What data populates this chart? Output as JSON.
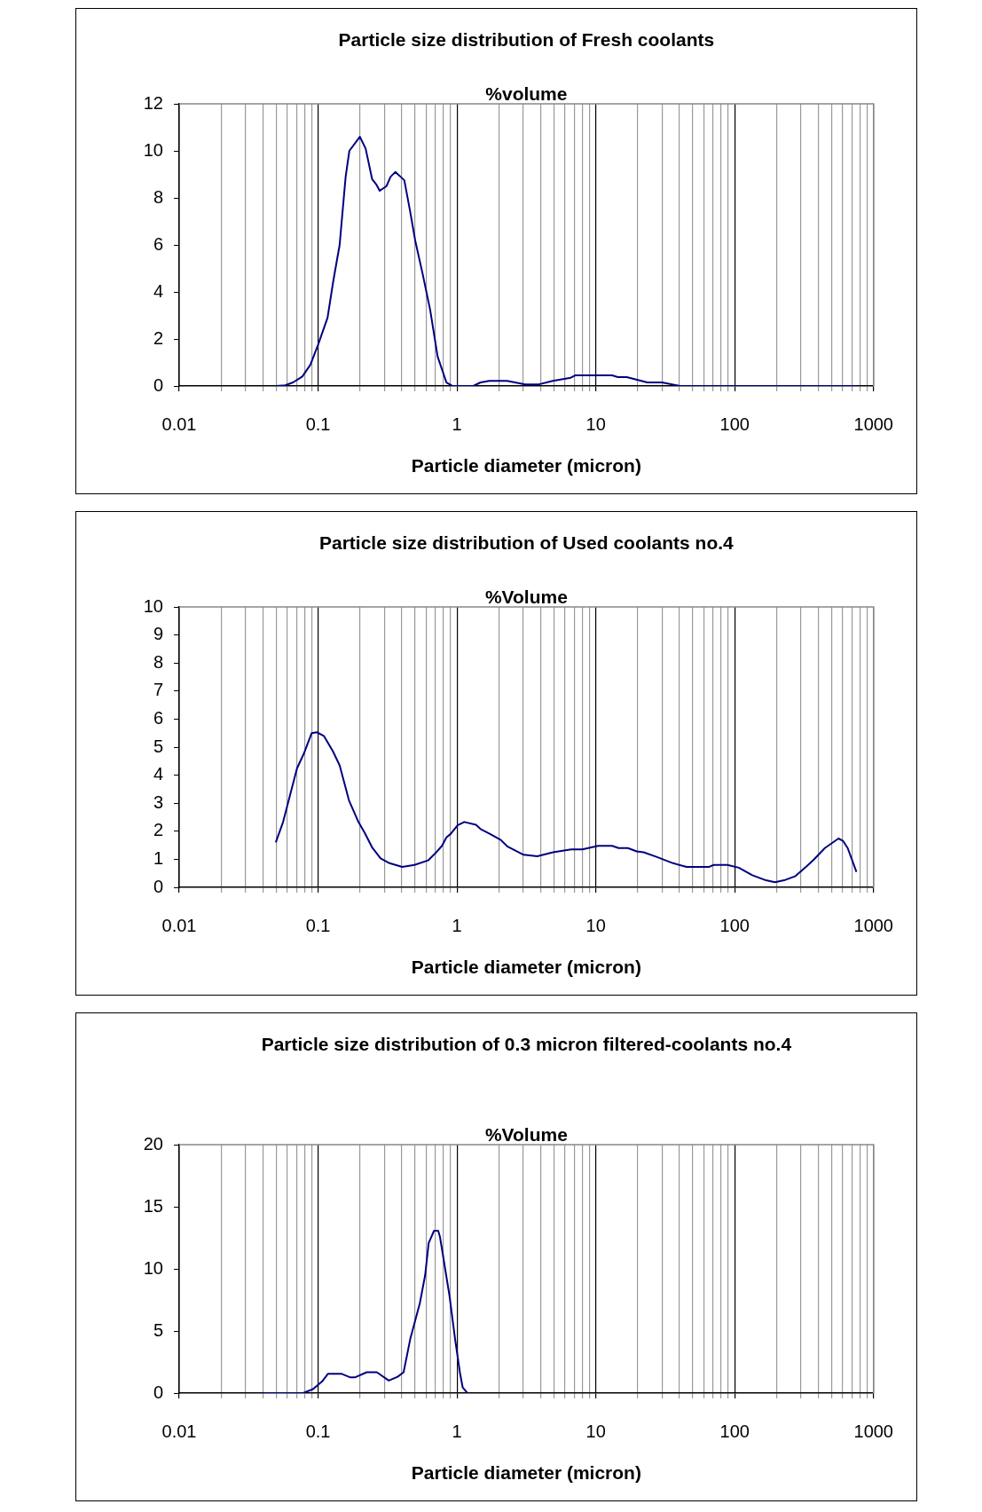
{
  "chart_data": [
    {
      "type": "line",
      "title": "Particle size distribution of Fresh coolants",
      "ylabel": "%volume",
      "xlabel": "Particle diameter (micron)",
      "log": "x",
      "grid": "x",
      "marker": "none",
      "line_style": "solid",
      "xlim": [
        0.01,
        1000
      ],
      "ylim": [
        0,
        12
      ],
      "yticks": [
        0,
        2,
        4,
        6,
        8,
        10,
        12
      ],
      "xticks": [
        0.01,
        {
          "value": 0.02,
          "label": null
        },
        {
          "value": 0.03,
          "label": null
        },
        {
          "value": 0.04,
          "label": null
        },
        {
          "value": 0.05,
          "label": null
        },
        {
          "value": 0.06,
          "label": null
        },
        {
          "value": 0.07,
          "label": null
        },
        {
          "value": 0.08,
          "label": null
        },
        {
          "value": 0.09,
          "label": null
        },
        0.1,
        {
          "value": 0.2,
          "label": null
        },
        {
          "value": 0.3,
          "label": null
        },
        {
          "value": 0.4,
          "label": null
        },
        {
          "value": 0.5,
          "label": null
        },
        {
          "value": 0.6,
          "label": null
        },
        {
          "value": 0.7,
          "label": null
        },
        {
          "value": 0.8,
          "label": null
        },
        {
          "value": 0.9,
          "label": null
        },
        1,
        {
          "value": 2,
          "label": null
        },
        {
          "value": 3,
          "label": null
        },
        {
          "value": 4,
          "label": null
        },
        {
          "value": 5,
          "label": null
        },
        {
          "value": 6,
          "label": null
        },
        {
          "value": 7,
          "label": null
        },
        {
          "value": 8,
          "label": null
        },
        {
          "value": 9,
          "label": null
        },
        10,
        {
          "value": 20,
          "label": null
        },
        {
          "value": 30,
          "label": null
        },
        {
          "value": 40,
          "label": null
        },
        {
          "value": 50,
          "label": null
        },
        {
          "value": 60,
          "label": null
        },
        {
          "value": 70,
          "label": null
        },
        {
          "value": 80,
          "label": null
        },
        {
          "value": 90,
          "label": null
        },
        100,
        {
          "value": 200,
          "label": null
        },
        {
          "value": 300,
          "label": null
        },
        {
          "value": 400,
          "label": null
        },
        {
          "value": 500,
          "label": null
        },
        {
          "value": 600,
          "label": null
        },
        {
          "value": 700,
          "label": null
        },
        {
          "value": 800,
          "label": null
        },
        {
          "value": 900,
          "label": null
        },
        1000
      ],
      "series": [
        {
          "color": "#000080",
          "x": [
            0.05,
            0.058,
            0.066,
            0.077,
            0.088,
            0.1,
            0.117,
            0.129,
            0.143,
            0.158,
            0.168,
            0.2,
            0.22,
            0.245,
            0.264,
            0.278,
            0.311,
            0.333,
            0.36,
            0.418,
            0.461,
            0.5,
            0.567,
            0.641,
            0.726,
            0.84,
            0.93,
            1.31,
            1.48,
            1.71,
            2.3,
            3.1,
            3.9,
            4.9,
            6.6,
            7.1,
            13.1,
            14.4,
            16.7,
            23.5,
            30,
            40.4,
            745
          ],
          "values": [
            0,
            0.03,
            0.15,
            0.4,
            0.9,
            1.75,
            2.9,
            4.5,
            6,
            8.9,
            10,
            10.6,
            10.1,
            8.8,
            8.55,
            8.3,
            8.5,
            8.9,
            9.1,
            8.75,
            7.4,
            6.2,
            4.75,
            3.25,
            1.25,
            0.15,
            0,
            0,
            0.15,
            0.22,
            0.22,
            0.07,
            0.07,
            0.22,
            0.35,
            0.45,
            0.45,
            0.38,
            0.38,
            0.15,
            0.15,
            0,
            0
          ]
        }
      ]
    },
    {
      "type": "line",
      "title": "Particle size distribution of Used coolants no.4",
      "ylabel": "%Volume",
      "xlabel": "Particle diameter (micron)",
      "log": "x",
      "grid": "x",
      "marker": "none",
      "line_style": "solid",
      "xlim": [
        0.01,
        1000
      ],
      "ylim": [
        0,
        10
      ],
      "yticks": [
        0,
        1,
        2,
        3,
        4,
        5,
        6,
        7,
        8,
        9,
        10
      ],
      "xticks": [
        0.01,
        {
          "value": 0.02,
          "label": null
        },
        {
          "value": 0.03,
          "label": null
        },
        {
          "value": 0.04,
          "label": null
        },
        {
          "value": 0.05,
          "label": null
        },
        {
          "value": 0.06,
          "label": null
        },
        {
          "value": 0.07,
          "label": null
        },
        {
          "value": 0.08,
          "label": null
        },
        {
          "value": 0.09,
          "label": null
        },
        0.1,
        {
          "value": 0.2,
          "label": null
        },
        {
          "value": 0.3,
          "label": null
        },
        {
          "value": 0.4,
          "label": null
        },
        {
          "value": 0.5,
          "label": null
        },
        {
          "value": 0.6,
          "label": null
        },
        {
          "value": 0.7,
          "label": null
        },
        {
          "value": 0.8,
          "label": null
        },
        {
          "value": 0.9,
          "label": null
        },
        1,
        {
          "value": 2,
          "label": null
        },
        {
          "value": 3,
          "label": null
        },
        {
          "value": 4,
          "label": null
        },
        {
          "value": 5,
          "label": null
        },
        {
          "value": 6,
          "label": null
        },
        {
          "value": 7,
          "label": null
        },
        {
          "value": 8,
          "label": null
        },
        {
          "value": 9,
          "label": null
        },
        10,
        {
          "value": 20,
          "label": null
        },
        {
          "value": 30,
          "label": null
        },
        {
          "value": 40,
          "label": null
        },
        {
          "value": 50,
          "label": null
        },
        {
          "value": 60,
          "label": null
        },
        {
          "value": 70,
          "label": null
        },
        {
          "value": 80,
          "label": null
        },
        {
          "value": 90,
          "label": null
        },
        100,
        {
          "value": 200,
          "label": null
        },
        {
          "value": 300,
          "label": null
        },
        {
          "value": 400,
          "label": null
        },
        {
          "value": 500,
          "label": null
        },
        {
          "value": 600,
          "label": null
        },
        {
          "value": 700,
          "label": null
        },
        {
          "value": 800,
          "label": null
        },
        {
          "value": 900,
          "label": null
        },
        1000
      ],
      "series": [
        {
          "color": "#000080",
          "x": [
            0.0496,
            0.056,
            0.0705,
            0.079,
            0.09,
            0.098,
            0.11,
            0.128,
            0.143,
            0.167,
            0.194,
            0.217,
            0.246,
            0.282,
            0.327,
            0.404,
            0.495,
            0.62,
            0.695,
            0.78,
            0.84,
            0.904,
            1.01,
            1.13,
            1.37,
            1.48,
            1.72,
            2.07,
            2.32,
            3.02,
            3.79,
            4.92,
            6.65,
            8,
            10.4,
            13.1,
            14.6,
            17,
            19.7,
            22.1,
            27.6,
            36,
            45,
            65.6,
            70.7,
            88.6,
            107,
            134,
            168,
            195,
            227,
            274,
            330,
            370,
            446,
            559,
            602,
            651,
            753
          ],
          "values": [
            1.6,
            2.33,
            4.24,
            4.77,
            5.5,
            5.53,
            5.4,
            4.85,
            4.35,
            3.1,
            2.36,
            1.94,
            1.41,
            1.03,
            0.86,
            0.73,
            0.8,
            0.96,
            1.2,
            1.48,
            1.78,
            1.91,
            2.21,
            2.33,
            2.23,
            2.08,
            1.91,
            1.69,
            1.45,
            1.16,
            1.11,
            1.25,
            1.35,
            1.35,
            1.48,
            1.48,
            1.4,
            1.4,
            1.28,
            1.25,
            1.08,
            0.86,
            0.73,
            0.73,
            0.8,
            0.8,
            0.7,
            0.43,
            0.25,
            0.18,
            0.25,
            0.4,
            0.75,
            0.98,
            1.4,
            1.74,
            1.66,
            1.4,
            0.55
          ]
        }
      ]
    },
    {
      "type": "line",
      "title": "Particle size distribution of 0.3 micron filtered-coolants no.4",
      "ylabel": "%Volume",
      "xlabel": "Particle diameter (micron)",
      "log": "x",
      "grid": "x",
      "marker": "none",
      "line_style": "solid",
      "xlim": [
        0.01,
        1000
      ],
      "ylim": [
        0,
        20
      ],
      "yticks": [
        0,
        5,
        10,
        15,
        20
      ],
      "xticks": [
        0.01,
        {
          "value": 0.02,
          "label": null
        },
        {
          "value": 0.03,
          "label": null
        },
        {
          "value": 0.04,
          "label": null
        },
        {
          "value": 0.05,
          "label": null
        },
        {
          "value": 0.06,
          "label": null
        },
        {
          "value": 0.07,
          "label": null
        },
        {
          "value": 0.08,
          "label": null
        },
        {
          "value": 0.09,
          "label": null
        },
        0.1,
        {
          "value": 0.2,
          "label": null
        },
        {
          "value": 0.3,
          "label": null
        },
        {
          "value": 0.4,
          "label": null
        },
        {
          "value": 0.5,
          "label": null
        },
        {
          "value": 0.6,
          "label": null
        },
        {
          "value": 0.7,
          "label": null
        },
        {
          "value": 0.8,
          "label": null
        },
        {
          "value": 0.9,
          "label": null
        },
        1,
        {
          "value": 2,
          "label": null
        },
        {
          "value": 3,
          "label": null
        },
        {
          "value": 4,
          "label": null
        },
        {
          "value": 5,
          "label": null
        },
        {
          "value": 6,
          "label": null
        },
        {
          "value": 7,
          "label": null
        },
        {
          "value": 8,
          "label": null
        },
        {
          "value": 9,
          "label": null
        },
        10,
        {
          "value": 20,
          "label": null
        },
        {
          "value": 30,
          "label": null
        },
        {
          "value": 40,
          "label": null
        },
        {
          "value": 50,
          "label": null
        },
        {
          "value": 60,
          "label": null
        },
        {
          "value": 70,
          "label": null
        },
        {
          "value": 80,
          "label": null
        },
        {
          "value": 90,
          "label": null
        },
        100,
        {
          "value": 200,
          "label": null
        },
        {
          "value": 300,
          "label": null
        },
        {
          "value": 400,
          "label": null
        },
        {
          "value": 500,
          "label": null
        },
        {
          "value": 600,
          "label": null
        },
        {
          "value": 700,
          "label": null
        },
        {
          "value": 800,
          "label": null
        },
        {
          "value": 900,
          "label": null
        },
        1000
      ],
      "series": [
        {
          "color": "#000080",
          "x": [
            0.0404,
            0.078,
            0.092,
            0.107,
            0.118,
            0.147,
            0.171,
            0.184,
            0.224,
            0.265,
            0.323,
            0.374,
            0.413,
            0.462,
            0.541,
            0.59,
            0.626,
            0.684,
            0.733,
            0.755,
            0.8,
            0.883,
            0.975,
            1.05,
            1.1,
            1.19
          ],
          "values": [
            0,
            0,
            0.32,
            0.94,
            1.56,
            1.56,
            1.26,
            1.26,
            1.68,
            1.68,
            1.01,
            1.31,
            1.68,
            4.4,
            7.25,
            9.48,
            12.08,
            13.07,
            13.07,
            12.57,
            10.84,
            7.87,
            4.16,
            1.68,
            0.45,
            0
          ]
        }
      ]
    }
  ]
}
